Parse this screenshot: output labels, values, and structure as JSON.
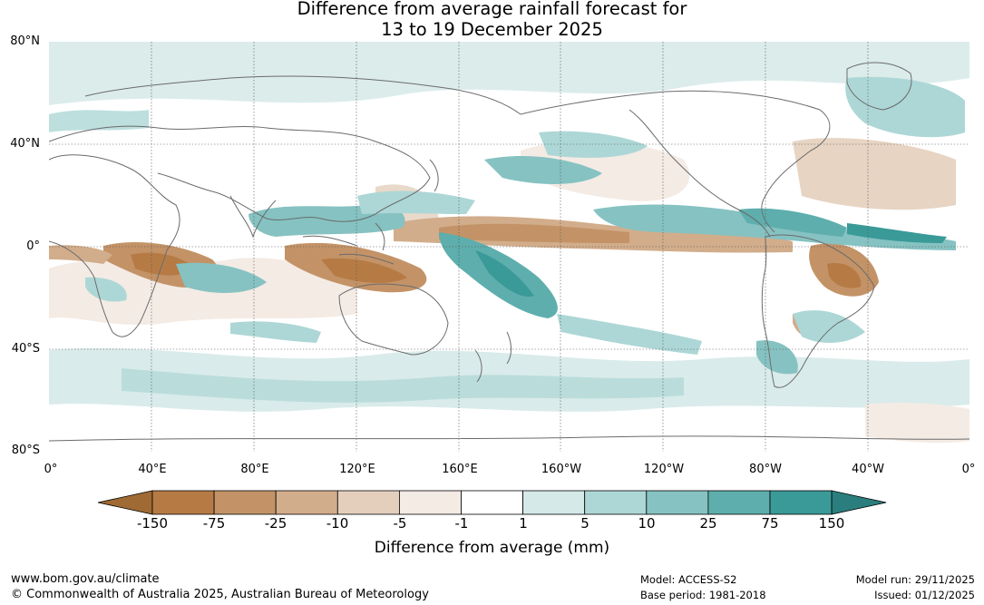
{
  "title_line1": "Difference from average rainfall forecast for",
  "title_line2": "13 to 19 December 2025",
  "lat_labels": [
    "80°N",
    "40°N",
    "0°",
    "40°S",
    "80°S"
  ],
  "lon_labels": [
    "0°",
    "40°E",
    "80°E",
    "120°E",
    "160°E",
    "160°W",
    "120°W",
    "80°W",
    "40°W",
    "0°"
  ],
  "colorbar": {
    "ticks": [
      "-150",
      "-75",
      "-25",
      "-10",
      "-5",
      "-1",
      "1",
      "5",
      "10",
      "25",
      "75",
      "150"
    ],
    "colors": [
      "#a06a34",
      "#b67b45",
      "#c39367",
      "#d2ad8b",
      "#e4cfbd",
      "#f4ebe5",
      "#ffffff",
      "#d5e9e8",
      "#add7d6",
      "#86c2c2",
      "#5eaead",
      "#3a9a98",
      "#2a7f7e"
    ],
    "label": "Difference from average (mm)"
  },
  "footer": {
    "website": "www.bom.gov.au/climate",
    "copyright": "© Commonwealth of Australia 2025, Australian Bureau of Meteorology",
    "model": "Model: ACCESS-S2",
    "base_period": "Base period: 1981-2018",
    "model_run": "Model run: 29/11/2025",
    "issued": "Issued: 01/12/2025"
  }
}
